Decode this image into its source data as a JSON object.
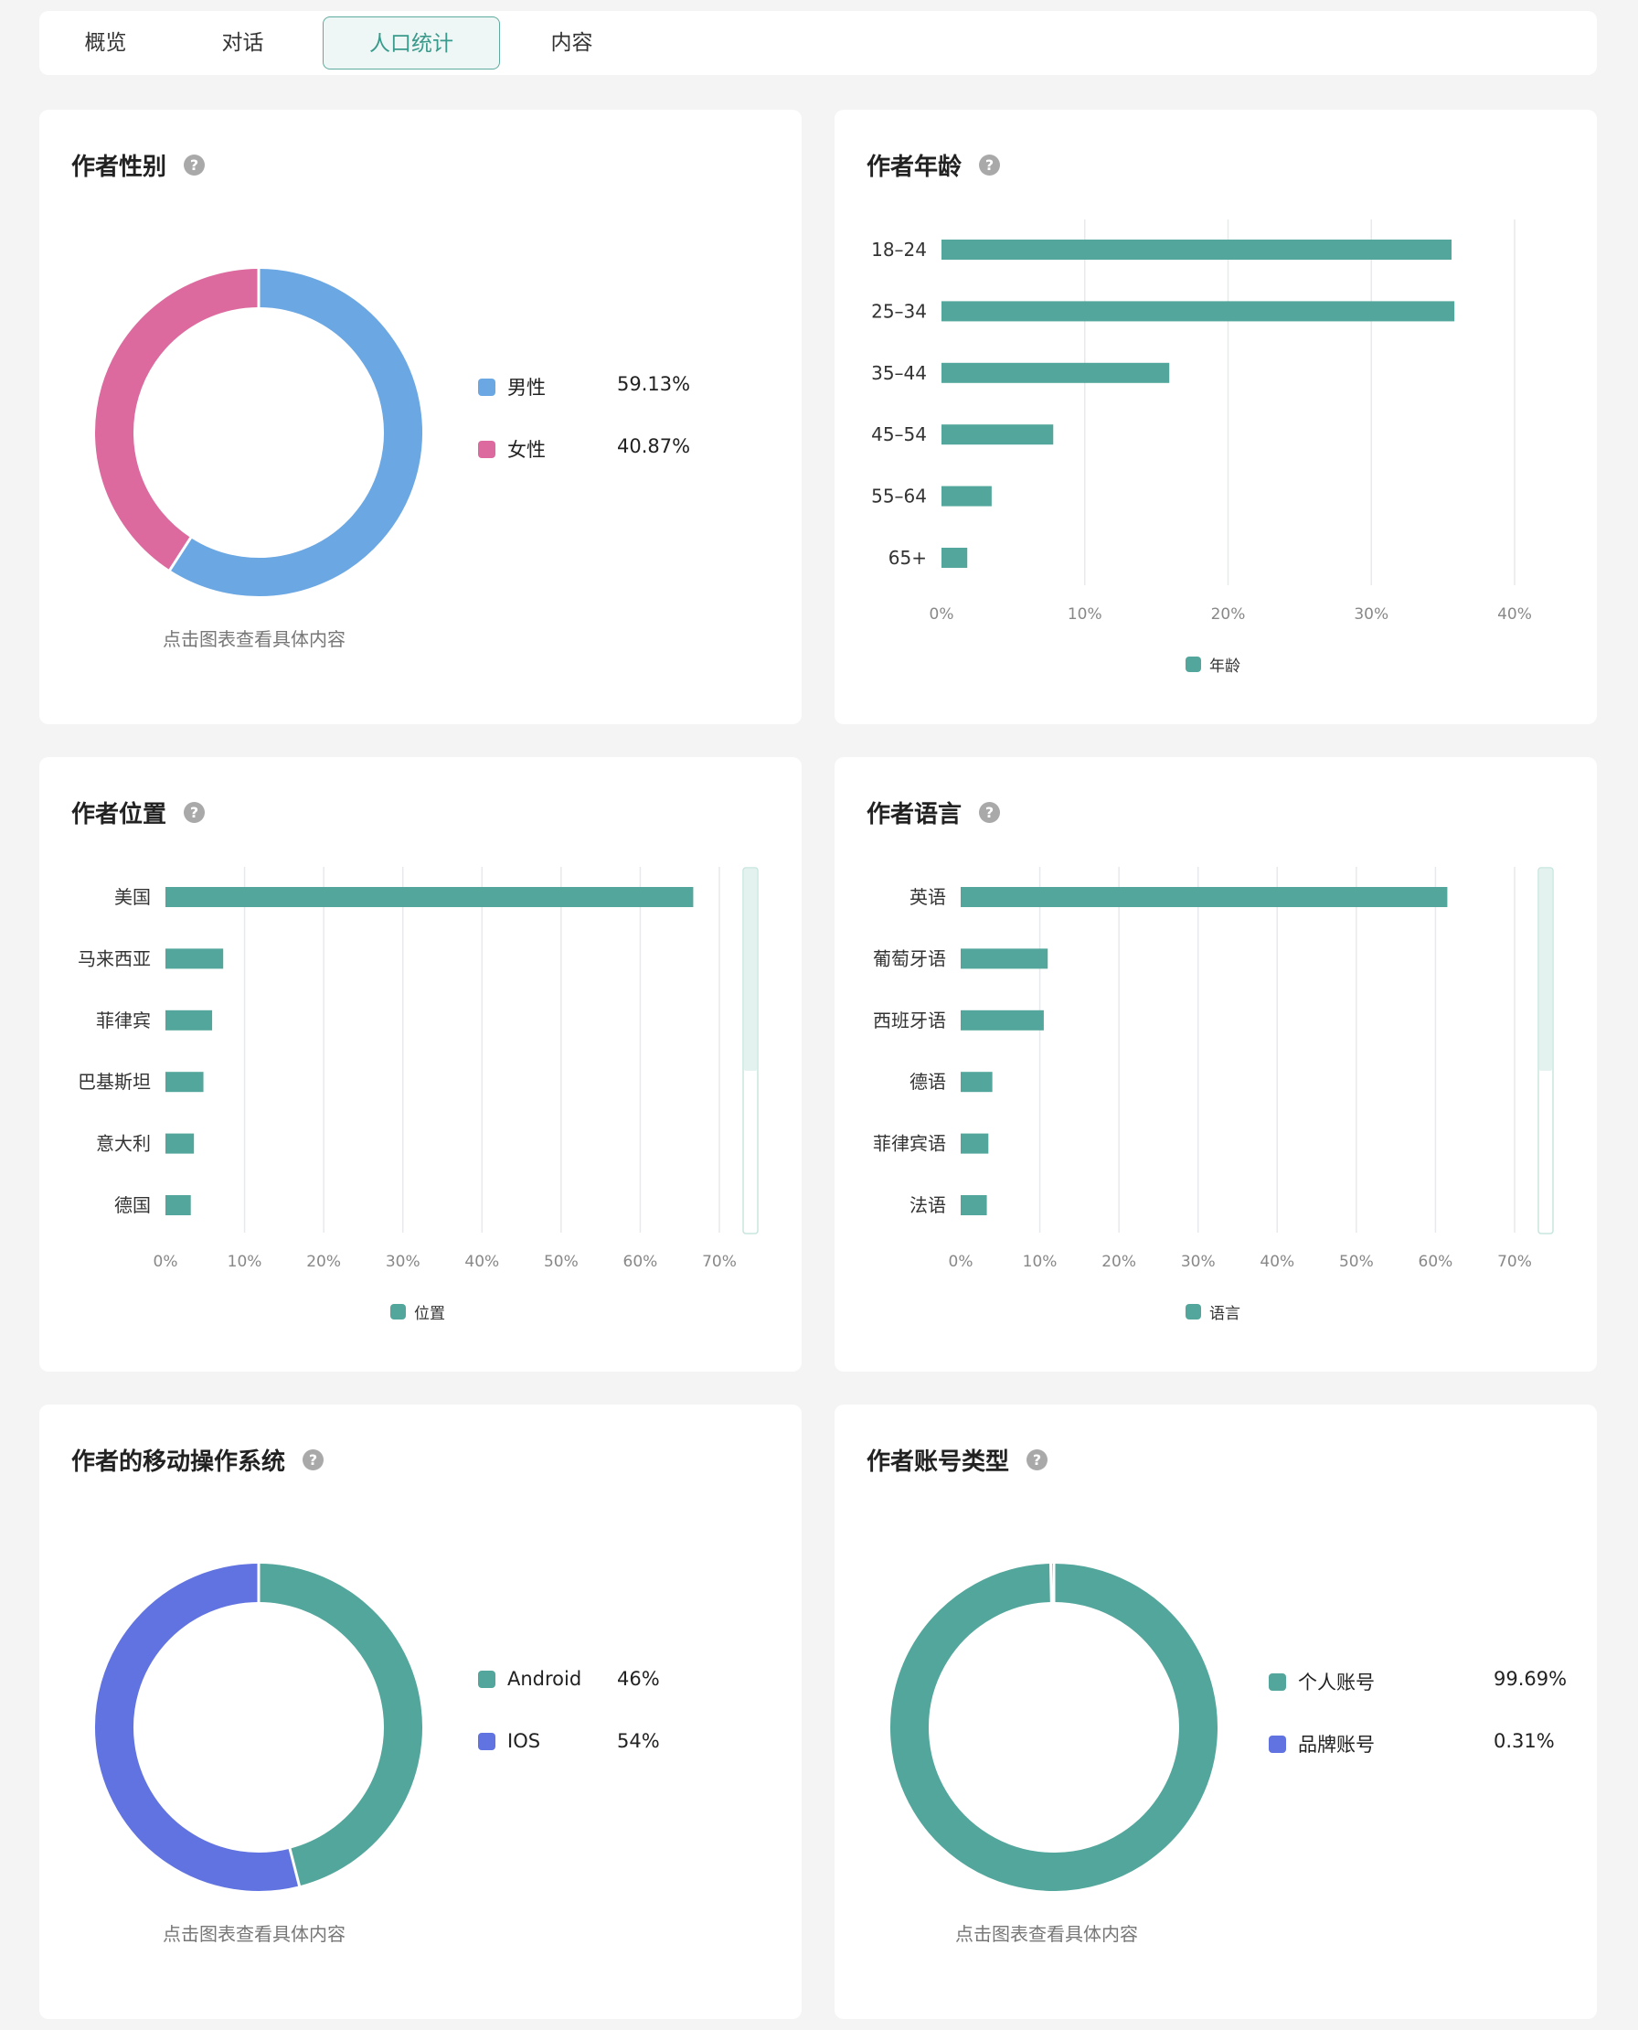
{
  "tabs": [
    "概览",
    "对话",
    "人口统计",
    "内容"
  ],
  "active_tab": "人口统计",
  "colors": {
    "teal": "#52a69b",
    "blue": "#6aa7e3",
    "pink": "#dc6a9e",
    "indigo": "#6173e0",
    "accent": "#3a9a8c"
  },
  "help_icon": "question-circle-icon",
  "hint_text": "点击图表查看具体内容",
  "gender": {
    "title": "作者性别",
    "items": [
      {
        "label": "男性",
        "value": "59.13%"
      },
      {
        "label": "女性",
        "value": "40.87%"
      }
    ]
  },
  "age": {
    "title": "作者年龄",
    "legend": "年龄"
  },
  "location": {
    "title": "作者位置",
    "legend": "位置"
  },
  "language": {
    "title": "作者语言",
    "legend": "语言"
  },
  "os": {
    "title": "作者的移动操作系统",
    "items": [
      {
        "label": "Android",
        "value": "46%"
      },
      {
        "label": "IOS",
        "value": "54%"
      }
    ]
  },
  "account": {
    "title": "作者账号类型",
    "items": [
      {
        "label": "个人账号",
        "value": "99.69%"
      },
      {
        "label": "品牌账号",
        "value": "0.31%"
      }
    ]
  },
  "chart_data": [
    {
      "id": "gender",
      "type": "pie",
      "categories": [
        "男性",
        "女性"
      ],
      "values": [
        59.13,
        40.87
      ],
      "colors": [
        "#6aa7e3",
        "#dc6a9e"
      ]
    },
    {
      "id": "age",
      "type": "bar",
      "categories": [
        "18–24",
        "25–34",
        "35–44",
        "45–54",
        "55–64",
        "65+"
      ],
      "values": [
        35.6,
        35.8,
        15.9,
        7.8,
        3.5,
        1.8
      ],
      "xlim": [
        0,
        40
      ],
      "ticks": [
        0,
        10,
        20,
        30,
        40
      ],
      "tick_labels": [
        "0%",
        "10%",
        "20%",
        "30%",
        "40%"
      ],
      "series": [
        {
          "name": "年龄"
        }
      ],
      "grid": true,
      "legend": "bottom"
    },
    {
      "id": "location",
      "type": "bar",
      "categories": [
        "美国",
        "马来西亚",
        "菲律宾",
        "巴基斯坦",
        "意大利",
        "德国"
      ],
      "values": [
        66.7,
        7.3,
        5.9,
        4.8,
        3.6,
        3.2
      ],
      "xlim": [
        0,
        70
      ],
      "ticks": [
        0,
        10,
        20,
        30,
        40,
        50,
        60,
        70
      ],
      "tick_labels": [
        "0%",
        "10%",
        "20%",
        "30%",
        "40%",
        "50%",
        "60%",
        "70%"
      ],
      "series": [
        {
          "name": "位置"
        }
      ],
      "grid": true,
      "legend": "bottom"
    },
    {
      "id": "language",
      "type": "bar",
      "categories": [
        "英语",
        "葡萄牙语",
        "西班牙语",
        "德语",
        "菲律宾语",
        "法语"
      ],
      "values": [
        61.5,
        11.0,
        10.5,
        4.0,
        3.5,
        3.3
      ],
      "xlim": [
        0,
        70
      ],
      "ticks": [
        0,
        10,
        20,
        30,
        40,
        50,
        60,
        70
      ],
      "tick_labels": [
        "0%",
        "10%",
        "20%",
        "30%",
        "40%",
        "50%",
        "60%",
        "70%"
      ],
      "series": [
        {
          "name": "语言"
        }
      ],
      "grid": true,
      "legend": "bottom"
    },
    {
      "id": "os",
      "type": "pie",
      "categories": [
        "Android",
        "IOS"
      ],
      "values": [
        46,
        54
      ],
      "colors": [
        "#52a69b",
        "#6173e0"
      ]
    },
    {
      "id": "account",
      "type": "pie",
      "categories": [
        "个人账号",
        "品牌账号"
      ],
      "values": [
        99.69,
        0.31
      ],
      "colors": [
        "#52a69b",
        "#6173e0"
      ]
    }
  ]
}
